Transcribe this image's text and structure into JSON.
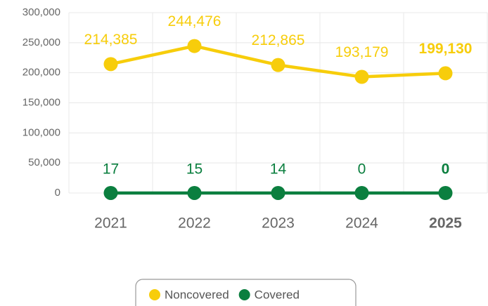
{
  "chart_data": {
    "type": "line",
    "categories": [
      "2021",
      "2022",
      "2023",
      "2024",
      "2025"
    ],
    "series": [
      {
        "name": "Noncovered",
        "color": "#f7cd0b",
        "values": [
          214385,
          244476,
          212865,
          193179,
          199130
        ],
        "value_labels": [
          "214,385",
          "244,476",
          "212,865",
          "193,179",
          "199,130"
        ]
      },
      {
        "name": "Covered",
        "color": "#0b7f3f",
        "values": [
          17,
          15,
          14,
          0,
          0
        ]
      }
    ],
    "ylim": [
      0,
      300000
    ],
    "yticks": [
      {
        "value": 0,
        "label": "0"
      },
      {
        "value": 50000,
        "label": "50,000"
      },
      {
        "value": 100000,
        "label": "100,000"
      },
      {
        "value": 150000,
        "label": "150,000"
      },
      {
        "value": 200000,
        "label": "200,000"
      },
      {
        "value": 250000,
        "label": "250,000"
      },
      {
        "value": 300000,
        "label": "300,000"
      }
    ],
    "grid": true
  }
}
